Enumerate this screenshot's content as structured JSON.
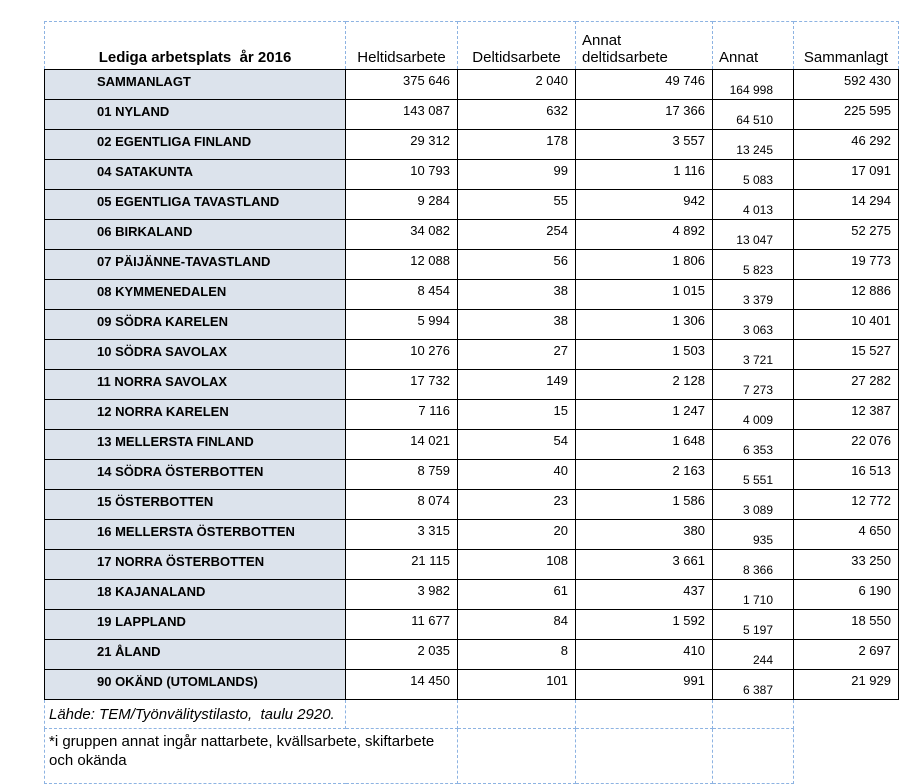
{
  "table": {
    "title": "Lediga arbetsplats  år 2016",
    "columns": [
      "Heltidsarbete",
      "Deltidsarbete",
      "Annat deltidsarbete",
      "Annat",
      "Sammanlagt"
    ],
    "rows": [
      {
        "name": "SAMMANLAGT",
        "heltid": "375 646",
        "deltid": "2 040",
        "annat_deltid": "49 746",
        "annat": "164 998",
        "sammanlagt": "592 430"
      },
      {
        "name": "01 NYLAND",
        "heltid": "143 087",
        "deltid": "632",
        "annat_deltid": "17 366",
        "annat": "64 510",
        "sammanlagt": "225 595"
      },
      {
        "name": "02 EGENTLIGA FINLAND",
        "heltid": "29 312",
        "deltid": "178",
        "annat_deltid": "3 557",
        "annat": "13 245",
        "sammanlagt": "46 292"
      },
      {
        "name": "04 SATAKUNTA",
        "heltid": "10 793",
        "deltid": "99",
        "annat_deltid": "1 116",
        "annat": "5 083",
        "sammanlagt": "17 091"
      },
      {
        "name": "05 EGENTLIGA TAVASTLAND",
        "heltid": "9 284",
        "deltid": "55",
        "annat_deltid": "942",
        "annat": "4 013",
        "sammanlagt": "14 294"
      },
      {
        "name": "06 BIRKALAND",
        "heltid": "34 082",
        "deltid": "254",
        "annat_deltid": "4 892",
        "annat": "13 047",
        "sammanlagt": "52 275"
      },
      {
        "name": "07 PÄIJÄNNE-TAVASTLAND",
        "heltid": "12 088",
        "deltid": "56",
        "annat_deltid": "1 806",
        "annat": "5 823",
        "sammanlagt": "19 773"
      },
      {
        "name": "08 KYMMENEDALEN",
        "heltid": "8 454",
        "deltid": "38",
        "annat_deltid": "1 015",
        "annat": "3 379",
        "sammanlagt": "12 886"
      },
      {
        "name": "09 SÖDRA KARELEN",
        "heltid": "5 994",
        "deltid": "38",
        "annat_deltid": "1 306",
        "annat": "3 063",
        "sammanlagt": "10 401"
      },
      {
        "name": "10 SÖDRA SAVOLAX",
        "heltid": "10 276",
        "deltid": "27",
        "annat_deltid": "1 503",
        "annat": "3 721",
        "sammanlagt": "15 527"
      },
      {
        "name": "11 NORRA SAVOLAX",
        "heltid": "17 732",
        "deltid": "149",
        "annat_deltid": "2 128",
        "annat": "7 273",
        "sammanlagt": "27 282"
      },
      {
        "name": "12 NORRA KARELEN",
        "heltid": "7 116",
        "deltid": "15",
        "annat_deltid": "1 247",
        "annat": "4 009",
        "sammanlagt": "12 387"
      },
      {
        "name": "13 MELLERSTA FINLAND",
        "heltid": "14 021",
        "deltid": "54",
        "annat_deltid": "1 648",
        "annat": "6 353",
        "sammanlagt": "22 076"
      },
      {
        "name": "14 SÖDRA ÖSTERBOTTEN",
        "heltid": "8 759",
        "deltid": "40",
        "annat_deltid": "2 163",
        "annat": "5 551",
        "sammanlagt": "16 513"
      },
      {
        "name": "15 ÖSTERBOTTEN",
        "heltid": "8 074",
        "deltid": "23",
        "annat_deltid": "1 586",
        "annat": "3 089",
        "sammanlagt": "12 772"
      },
      {
        "name": "16 MELLERSTA ÖSTERBOTTEN",
        "heltid": "3 315",
        "deltid": "20",
        "annat_deltid": "380",
        "annat": "935",
        "sammanlagt": "4 650"
      },
      {
        "name": "17 NORRA ÖSTERBOTTEN",
        "heltid": "21 115",
        "deltid": "108",
        "annat_deltid": "3 661",
        "annat": "8 366",
        "sammanlagt": "33 250"
      },
      {
        "name": "18 KAJANALAND",
        "heltid": "3 982",
        "deltid": "61",
        "annat_deltid": "437",
        "annat": "1 710",
        "sammanlagt": "6 190"
      },
      {
        "name": "19 LAPPLAND",
        "heltid": "11 677",
        "deltid": "84",
        "annat_deltid": "1 592",
        "annat": "5 197",
        "sammanlagt": "18 550"
      },
      {
        "name": "21 ÅLAND",
        "heltid": "2 035",
        "deltid": "8",
        "annat_deltid": "410",
        "annat": "244",
        "sammanlagt": "2 697"
      },
      {
        "name": "90 OKÄND (UTOMLANDS)",
        "heltid": "14 450",
        "deltid": "101",
        "annat_deltid": "991",
        "annat": "6 387",
        "sammanlagt": "21 929"
      }
    ]
  },
  "footer": {
    "source": "Lähde: TEM/Työnvälitystilasto,  taulu 2920.",
    "note": "*i gruppen annat ingår nattarbete, kvällsarbete, skiftarbete och okända"
  },
  "colors": {
    "row_header_fill": "#dce3ec",
    "grid_dashed": "#8db3e2",
    "data_border": "#000000"
  }
}
